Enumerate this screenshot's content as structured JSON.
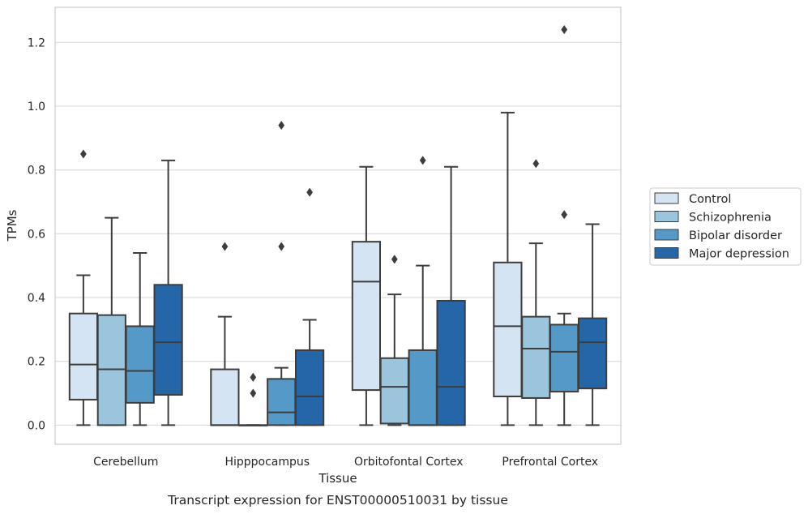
{
  "chart_data": {
    "type": "box",
    "xlabel": "Tissue",
    "ylabel": "TPMs",
    "caption": "Transcript expression for ENST00000510031 by tissue",
    "ylim": [
      -0.06,
      1.31
    ],
    "yticks": [
      "0.0",
      "0.2",
      "0.4",
      "0.6",
      "0.8",
      "1.0",
      "1.2"
    ],
    "grid": true,
    "legend_position": "right",
    "categories": [
      "Cerebellum",
      "Hipppocampus",
      "Orbitofontal Cortex",
      "Prefrontal Cortex"
    ],
    "series": [
      {
        "name": "Control",
        "color": "#d5e4f3",
        "boxes": [
          {
            "whisker_low": 0.0,
            "q1": 0.08,
            "median": 0.19,
            "q3": 0.35,
            "whisker_high": 0.47,
            "outliers": [
              0.85
            ]
          },
          {
            "whisker_low": 0.0,
            "q1": 0.0,
            "median": 0.0,
            "q3": 0.175,
            "whisker_high": 0.34,
            "outliers": [
              0.56
            ]
          },
          {
            "whisker_low": 0.0,
            "q1": 0.11,
            "median": 0.45,
            "q3": 0.575,
            "whisker_high": 0.81,
            "outliers": []
          },
          {
            "whisker_low": 0.0,
            "q1": 0.09,
            "median": 0.31,
            "q3": 0.51,
            "whisker_high": 0.98,
            "outliers": []
          }
        ]
      },
      {
        "name": "Schizophrenia",
        "color": "#9bc4dd",
        "boxes": [
          {
            "whisker_low": 0.0,
            "q1": 0.0,
            "median": 0.175,
            "q3": 0.345,
            "whisker_high": 0.65,
            "outliers": []
          },
          {
            "whisker_low": 0.0,
            "q1": 0.0,
            "median": 0.0,
            "q3": 0.0,
            "whisker_high": 0.0,
            "outliers": [
              0.1,
              0.15
            ]
          },
          {
            "whisker_low": 0.0,
            "q1": 0.005,
            "median": 0.12,
            "q3": 0.21,
            "whisker_high": 0.41,
            "outliers": [
              0.52
            ]
          },
          {
            "whisker_low": 0.0,
            "q1": 0.085,
            "median": 0.24,
            "q3": 0.34,
            "whisker_high": 0.57,
            "outliers": [
              0.82
            ]
          }
        ]
      },
      {
        "name": "Bipolar disorder",
        "color": "#5599c8",
        "boxes": [
          {
            "whisker_low": 0.0,
            "q1": 0.07,
            "median": 0.17,
            "q3": 0.31,
            "whisker_high": 0.54,
            "outliers": []
          },
          {
            "whisker_low": 0.0,
            "q1": 0.0,
            "median": 0.04,
            "q3": 0.145,
            "whisker_high": 0.18,
            "outliers": [
              0.56,
              0.94
            ]
          },
          {
            "whisker_low": 0.0,
            "q1": 0.0,
            "median": 0.0,
            "q3": 0.235,
            "whisker_high": 0.5,
            "outliers": [
              0.83
            ]
          },
          {
            "whisker_low": 0.0,
            "q1": 0.105,
            "median": 0.23,
            "q3": 0.315,
            "whisker_high": 0.35,
            "outliers": [
              0.66,
              1.24
            ]
          }
        ]
      },
      {
        "name": "Major depression",
        "color": "#2566a9",
        "boxes": [
          {
            "whisker_low": 0.0,
            "q1": 0.095,
            "median": 0.26,
            "q3": 0.44,
            "whisker_high": 0.83,
            "outliers": []
          },
          {
            "whisker_low": 0.0,
            "q1": 0.0,
            "median": 0.09,
            "q3": 0.235,
            "whisker_high": 0.33,
            "outliers": [
              0.73
            ]
          },
          {
            "whisker_low": 0.0,
            "q1": 0.0,
            "median": 0.12,
            "q3": 0.39,
            "whisker_high": 0.81,
            "outliers": []
          },
          {
            "whisker_low": 0.0,
            "q1": 0.115,
            "median": 0.26,
            "q3": 0.335,
            "whisker_high": 0.63,
            "outliers": []
          }
        ]
      }
    ]
  }
}
